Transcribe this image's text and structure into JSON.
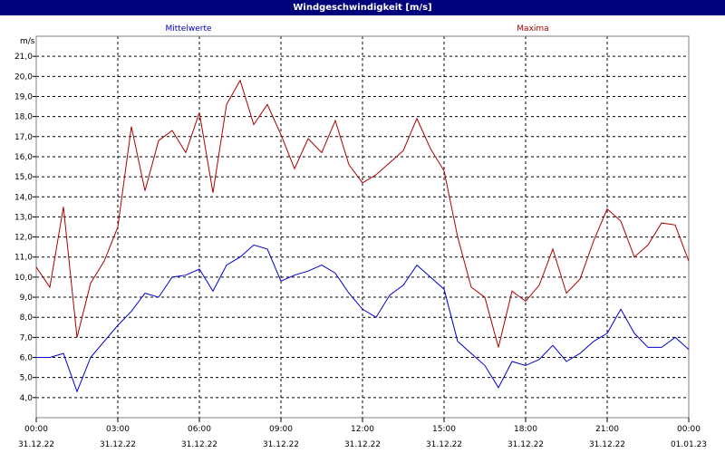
{
  "chart_data": {
    "type": "line",
    "title": "Windgeschwindigkeit [m/s]",
    "ylabel": "m/s",
    "ylim": [
      3.0,
      22.0
    ],
    "yticks": [
      4.0,
      5.0,
      6.0,
      7.0,
      8.0,
      9.0,
      10.0,
      11.0,
      12.0,
      13.0,
      14.0,
      15.0,
      16.0,
      17.0,
      18.0,
      19.0,
      20.0,
      21.0
    ],
    "ytick_labels": [
      "4,0",
      "5,0",
      "6,0",
      "7,0",
      "8,0",
      "9,0",
      "10,0",
      "11,0",
      "12,0",
      "13,0",
      "14,0",
      "15,0",
      "16,0",
      "17,0",
      "18,0",
      "19,0",
      "20,0",
      "21,0"
    ],
    "xlim_hours": [
      0,
      24
    ],
    "xticks": [
      {
        "hour": 0,
        "time": "00:00",
        "date": "31.12.22"
      },
      {
        "hour": 3,
        "time": "03:00",
        "date": "31.12.22"
      },
      {
        "hour": 6,
        "time": "06:00",
        "date": "31.12.22"
      },
      {
        "hour": 9,
        "time": "09:00",
        "date": "31.12.22"
      },
      {
        "hour": 12,
        "time": "12:00",
        "date": "31.12.22"
      },
      {
        "hour": 15,
        "time": "15:00",
        "date": "31.12.22"
      },
      {
        "hour": 18,
        "time": "18:00",
        "date": "31.12.22"
      },
      {
        "hour": 21,
        "time": "21:00",
        "date": "31.12.22"
      },
      {
        "hour": 24,
        "time": "00:00",
        "date": "01.01.23"
      }
    ],
    "grid": true,
    "series": [
      {
        "name": "Mittelwerte",
        "color": "#0000cc",
        "hours": [
          0,
          0.5,
          1,
          1.5,
          2,
          2.5,
          3,
          3.5,
          4,
          4.5,
          5,
          5.5,
          6,
          6.5,
          7,
          7.5,
          8,
          8.5,
          9,
          9.5,
          10,
          10.5,
          11,
          11.5,
          12,
          12.5,
          13,
          13.5,
          14,
          14.5,
          15,
          15.5,
          16,
          16.5,
          17,
          17.5,
          18,
          18.5,
          19,
          19.5,
          20,
          20.5,
          21,
          21.5,
          22,
          22.5,
          23,
          23.5,
          24
        ],
        "values": [
          6.0,
          6.0,
          6.2,
          4.3,
          6.0,
          6.8,
          7.6,
          8.3,
          9.2,
          9.0,
          10.0,
          10.1,
          10.4,
          9.3,
          10.6,
          11.0,
          11.6,
          11.4,
          9.8,
          10.1,
          10.3,
          10.6,
          10.2,
          9.2,
          8.4,
          8.0,
          9.1,
          9.6,
          10.6,
          10.0,
          9.4,
          6.8,
          6.2,
          5.6,
          4.5,
          5.8,
          5.6,
          5.9,
          6.6,
          5.8,
          6.2,
          6.8,
          7.2,
          8.4,
          7.2,
          6.5,
          6.5,
          7.0,
          6.4
        ]
      },
      {
        "name": "Maxima",
        "color": "#aa0000",
        "hours": [
          0,
          0.5,
          1,
          1.5,
          2,
          2.5,
          3,
          3.5,
          4,
          4.5,
          5,
          5.5,
          6,
          6.5,
          7,
          7.5,
          8,
          8.5,
          9,
          9.5,
          10,
          10.5,
          11,
          11.5,
          12,
          12.5,
          13,
          13.5,
          14,
          14.5,
          15,
          15.5,
          16,
          16.5,
          17,
          17.5,
          18,
          18.5,
          19,
          19.5,
          20,
          20.5,
          21,
          21.5,
          22,
          22.5,
          23,
          23.5,
          24
        ],
        "values": [
          10.5,
          9.5,
          13.5,
          7.0,
          9.7,
          10.8,
          12.5,
          17.5,
          14.3,
          16.8,
          17.3,
          16.2,
          18.2,
          14.2,
          18.6,
          19.8,
          17.6,
          18.6,
          17.1,
          15.4,
          16.9,
          16.2,
          17.8,
          15.6,
          14.7,
          15.1,
          15.7,
          16.3,
          17.9,
          16.4,
          15.3,
          12.0,
          9.5,
          9.0,
          6.5,
          9.3,
          8.8,
          9.6,
          11.4,
          9.2,
          9.9,
          11.8,
          13.4,
          12.8,
          11.0,
          11.6,
          12.7,
          12.6,
          10.8
        ]
      }
    ]
  }
}
